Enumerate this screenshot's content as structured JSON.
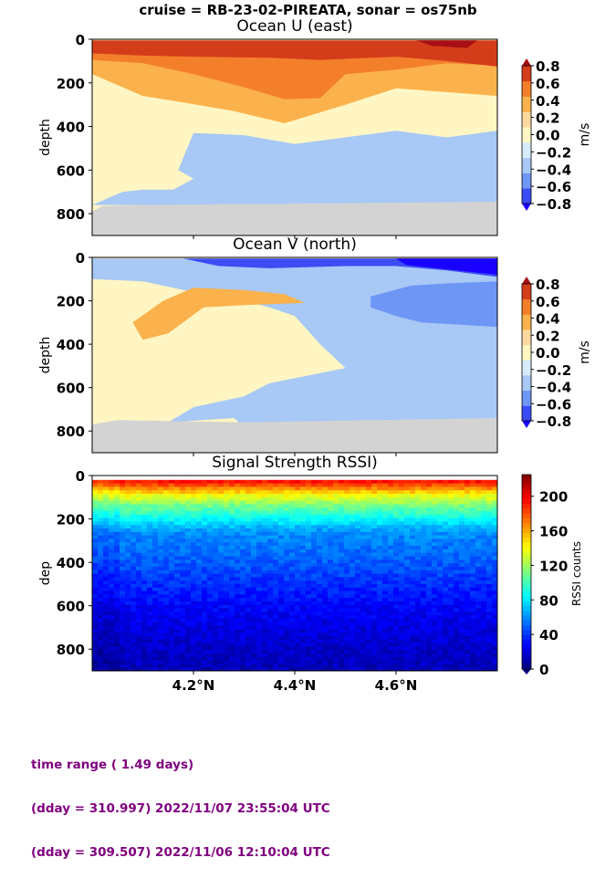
{
  "suptitle": "cruise = RB-23-02-PIREATA,  sonar = os75nb",
  "footer": {
    "line1": "time range ( 1.49 days)",
    "line2": "(dday = 310.997) 2022/11/07 23:55:04 UTC",
    "line3": "(dday = 309.507) 2022/11/06 12:10:04 UTC"
  },
  "colors": {
    "nodata": "#d3d3d3",
    "velocity_levels": [
      "#1a00ff",
      "#3b4cf5",
      "#6e96f5",
      "#a8c8f5",
      "#d6ecfb",
      "#fff6c3",
      "#fdd9a0",
      "#fbb24c",
      "#f47f2a",
      "#d43d1a",
      "#a50f15"
    ]
  },
  "chart_data": [
    {
      "type": "heatmap",
      "title": "Ocean U (east)",
      "xlabel": "",
      "ylabel": "depth",
      "xlim": [
        4.0,
        4.8
      ],
      "xticks": [],
      "ylim": [
        900,
        0
      ],
      "yticks": [
        "0",
        "200",
        "400",
        "600",
        "800"
      ],
      "colorbar": {
        "label": "m/s",
        "ticks": [
          "0.8",
          "0.6",
          "0.4",
          "0.2",
          "0.0",
          "−0.2",
          "−0.4",
          "−0.6",
          "−0.8"
        ],
        "range": [
          -0.8,
          0.8
        ],
        "extend": "both"
      },
      "contour_layers": [
        {
          "level": 0.2,
          "polys": [
            [
              [
                4.0,
                20
              ],
              [
                4.8,
                20
              ],
              [
                4.8,
                260
              ],
              [
                4.6,
                225
              ],
              [
                4.5,
                300
              ],
              [
                4.38,
                385
              ],
              [
                4.28,
                330
              ],
              [
                4.18,
                290
              ],
              [
                4.1,
                260
              ],
              [
                4.0,
                160
              ]
            ]
          ]
        },
        {
          "level": 0.4,
          "polys": [
            [
              [
                4.0,
                10
              ],
              [
                4.8,
                10
              ],
              [
                4.8,
                120
              ],
              [
                4.7,
                110
              ],
              [
                4.6,
                140
              ],
              [
                4.5,
                160
              ],
              [
                4.45,
                270
              ],
              [
                4.38,
                275
              ],
              [
                4.3,
                220
              ],
              [
                4.2,
                160
              ],
              [
                4.1,
                110
              ],
              [
                4.0,
                95
              ]
            ]
          ]
        },
        {
          "level": 0.6,
          "polys": [
            [
              [
                4.0,
                5
              ],
              [
                4.8,
                5
              ],
              [
                4.8,
                125
              ],
              [
                4.7,
                100
              ],
              [
                4.6,
                80
              ],
              [
                4.45,
                95
              ],
              [
                4.35,
                85
              ],
              [
                4.2,
                80
              ],
              [
                4.1,
                75
              ],
              [
                4.0,
                65
              ]
            ]
          ]
        },
        {
          "level": 0.8,
          "polys": [
            [
              [
                4.64,
                5
              ],
              [
                4.76,
                5
              ],
              [
                4.74,
                40
              ],
              [
                4.67,
                30
              ]
            ]
          ]
        },
        {
          "level": -0.2,
          "polys": [
            [
              [
                4.0,
                760
              ],
              [
                4.06,
                700
              ],
              [
                4.1,
                690
              ],
              [
                4.16,
                690
              ],
              [
                4.2,
                640
              ],
              [
                4.17,
                600
              ],
              [
                4.2,
                430
              ],
              [
                4.3,
                440
              ],
              [
                4.4,
                480
              ],
              [
                4.5,
                450
              ],
              [
                4.6,
                420
              ],
              [
                4.7,
                450
              ],
              [
                4.8,
                420
              ],
              [
                4.8,
                760
              ],
              [
                4.07,
                760
              ]
            ]
          ]
        }
      ],
      "nodata_polys": [
        [
          [
            4.0,
            790
          ],
          [
            4.02,
            765
          ],
          [
            4.1,
            760
          ],
          [
            4.8,
            745
          ],
          [
            4.8,
            900
          ],
          [
            4.0,
            900
          ]
        ]
      ]
    },
    {
      "type": "heatmap",
      "title": "Ocean V (north)",
      "xlabel": "",
      "ylabel": "depth",
      "xlim": [
        4.0,
        4.8
      ],
      "xticks": [],
      "ylim": [
        900,
        0
      ],
      "yticks": [
        "0",
        "200",
        "400",
        "600",
        "800"
      ],
      "colorbar": {
        "label": "m/s",
        "ticks": [
          "0.8",
          "0.6",
          "0.4",
          "0.2",
          "0.0",
          "−0.2",
          "−0.4",
          "−0.6",
          "−0.8"
        ],
        "range": [
          -0.8,
          0.8
        ],
        "extend": "both"
      },
      "contour_layers": [
        {
          "level": -0.2,
          "polys": [
            [
              [
                4.0,
                5
              ],
              [
                4.8,
                5
              ],
              [
                4.8,
                780
              ],
              [
                4.3,
                780
              ],
              [
                4.28,
                740
              ],
              [
                4.15,
                760
              ],
              [
                4.2,
                690
              ],
              [
                4.3,
                640
              ],
              [
                4.35,
                580
              ],
              [
                4.5,
                510
              ],
              [
                4.45,
                400
              ],
              [
                4.4,
                270
              ],
              [
                4.35,
                230
              ],
              [
                4.3,
                200
              ],
              [
                4.2,
                160
              ],
              [
                4.1,
                110
              ],
              [
                4.0,
                100
              ]
            ]
          ]
        },
        {
          "level": -0.4,
          "polys": [
            [
              [
                4.55,
                180
              ],
              [
                4.63,
                130
              ],
              [
                4.7,
                120
              ],
              [
                4.8,
                110
              ],
              [
                4.8,
                320
              ],
              [
                4.65,
                300
              ],
              [
                4.6,
                270
              ],
              [
                4.55,
                230
              ]
            ]
          ]
        },
        {
          "level": -0.6,
          "polys": [
            [
              [
                4.18,
                5
              ],
              [
                4.8,
                5
              ],
              [
                4.8,
                90
              ],
              [
                4.7,
                60
              ],
              [
                4.6,
                40
              ],
              [
                4.5,
                40
              ],
              [
                4.35,
                50
              ],
              [
                4.25,
                40
              ]
            ]
          ]
        },
        {
          "level": -0.8,
          "polys": [
            [
              [
                4.6,
                5
              ],
              [
                4.8,
                5
              ],
              [
                4.8,
                80
              ],
              [
                4.7,
                55
              ],
              [
                4.62,
                35
              ]
            ]
          ]
        },
        {
          "level": 0.2,
          "polys": [
            [
              [
                4.08,
                300
              ],
              [
                4.14,
                200
              ],
              [
                4.2,
                140
              ],
              [
                4.3,
                150
              ],
              [
                4.38,
                170
              ],
              [
                4.42,
                210
              ],
              [
                4.3,
                220
              ],
              [
                4.22,
                230
              ],
              [
                4.15,
                350
              ],
              [
                4.1,
                380
              ]
            ]
          ]
        }
      ],
      "nodata_polys": [
        [
          [
            4.0,
            770
          ],
          [
            4.05,
            750
          ],
          [
            4.3,
            760
          ],
          [
            4.8,
            740
          ],
          [
            4.8,
            900
          ],
          [
            4.0,
            900
          ]
        ]
      ]
    },
    {
      "type": "heatmap",
      "title": "Signal Strength RSSI)",
      "xlabel": "",
      "ylabel": "dep",
      "xlim": [
        4.0,
        4.8
      ],
      "xticks": [
        "4.2°N",
        "4.4°N",
        "4.6°N"
      ],
      "xtick_values": [
        4.2,
        4.4,
        4.6
      ],
      "ylim": [
        900,
        0
      ],
      "yticks": [
        "0",
        "200",
        "400",
        "600",
        "800"
      ],
      "colorbar": {
        "label": "RSSI counts",
        "ticks": [
          "200",
          "160",
          "120",
          "80",
          "40",
          "0"
        ],
        "range": [
          0,
          225
        ],
        "extend": "min"
      },
      "rssi_profile": [
        {
          "depth": 20,
          "value": 200
        },
        {
          "depth": 50,
          "value": 175
        },
        {
          "depth": 90,
          "value": 140
        },
        {
          "depth": 140,
          "value": 110
        },
        {
          "depth": 200,
          "value": 85
        },
        {
          "depth": 260,
          "value": 60
        },
        {
          "depth": 320,
          "value": 55
        },
        {
          "depth": 380,
          "value": 50
        },
        {
          "depth": 480,
          "value": 40
        },
        {
          "depth": 600,
          "value": 28
        },
        {
          "depth": 700,
          "value": 22
        },
        {
          "depth": 800,
          "value": 16
        },
        {
          "depth": 900,
          "value": 12
        }
      ]
    }
  ]
}
